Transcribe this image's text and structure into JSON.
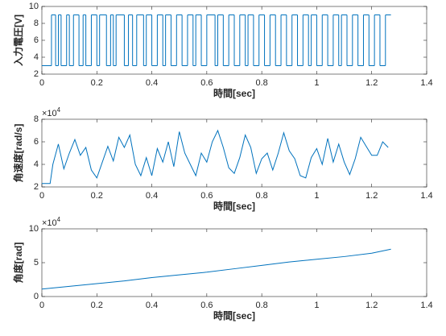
{
  "chart_data": [
    {
      "type": "step",
      "xlabel": "時間[sec]",
      "ylabel": "入力電圧[V]",
      "color": "#0072BD",
      "x": [
        0,
        0.035,
        0.05,
        0.06,
        0.07,
        0.09,
        0.1,
        0.115,
        0.135,
        0.15,
        0.16,
        0.18,
        0.2,
        0.21,
        0.235,
        0.25,
        0.26,
        0.27,
        0.3,
        0.315,
        0.33,
        0.345,
        0.37,
        0.38,
        0.4,
        0.42,
        0.44,
        0.45,
        0.47,
        0.49,
        0.51,
        0.53,
        0.55,
        0.56,
        0.58,
        0.6,
        0.63,
        0.64,
        0.66,
        0.68,
        0.7,
        0.72,
        0.74,
        0.75,
        0.77,
        0.79,
        0.81,
        0.83,
        0.85,
        0.87,
        0.89,
        0.91,
        0.93,
        0.95,
        0.97,
        0.98,
        1.0,
        1.02,
        1.04,
        1.06,
        1.08,
        1.09,
        1.11,
        1.13,
        1.15,
        1.17,
        1.19,
        1.21,
        1.23,
        1.25,
        1.27
      ],
      "values": [
        3,
        9,
        3,
        9,
        3,
        9,
        3,
        9,
        3,
        9,
        3,
        9,
        3,
        9,
        3,
        9,
        3,
        9,
        3,
        9,
        3,
        9,
        3,
        9,
        3,
        9,
        3,
        9,
        3,
        9,
        3,
        9,
        3,
        9,
        3,
        9,
        3,
        9,
        3,
        9,
        3,
        9,
        3,
        9,
        3,
        9,
        3,
        9,
        3,
        9,
        3,
        9,
        3,
        9,
        3,
        9,
        3,
        9,
        3,
        9,
        3,
        9,
        3,
        9,
        3,
        9,
        3,
        9,
        3,
        9,
        9
      ],
      "xlim": [
        0,
        1.4
      ],
      "xticks": [
        0,
        0.2,
        0.4,
        0.6,
        0.8,
        1,
        1.2,
        1.4
      ],
      "ylim": [
        2,
        10
      ],
      "yticks": [
        2,
        4,
        6,
        8,
        10
      ]
    },
    {
      "type": "line",
      "xlabel": "時間[sec]",
      "ylabel": "角速度[rad/s]",
      "color": "#0072BD",
      "y_exponent_base": "×10",
      "y_exponent": "4",
      "x": [
        0,
        0.03,
        0.04,
        0.06,
        0.08,
        0.1,
        0.12,
        0.14,
        0.16,
        0.18,
        0.2,
        0.22,
        0.24,
        0.26,
        0.28,
        0.3,
        0.32,
        0.34,
        0.36,
        0.38,
        0.4,
        0.42,
        0.44,
        0.46,
        0.48,
        0.5,
        0.52,
        0.54,
        0.56,
        0.58,
        0.6,
        0.62,
        0.64,
        0.66,
        0.68,
        0.7,
        0.72,
        0.74,
        0.76,
        0.78,
        0.8,
        0.82,
        0.84,
        0.86,
        0.88,
        0.9,
        0.92,
        0.94,
        0.96,
        0.98,
        1.0,
        1.02,
        1.04,
        1.06,
        1.08,
        1.1,
        1.12,
        1.14,
        1.16,
        1.18,
        1.2,
        1.22,
        1.24,
        1.26
      ],
      "values": [
        2.3,
        2.3,
        4.0,
        5.8,
        3.6,
        5.0,
        6.2,
        4.8,
        5.5,
        3.5,
        2.8,
        4.2,
        5.6,
        4.3,
        6.4,
        5.5,
        6.6,
        4.0,
        3.0,
        4.6,
        3.0,
        5.4,
        4.2,
        6.0,
        3.8,
        6.9,
        5.0,
        4.0,
        3.0,
        5.0,
        4.2,
        6.0,
        7.0,
        5.5,
        3.7,
        3.2,
        4.6,
        6.6,
        5.5,
        3.2,
        4.5,
        5.0,
        3.5,
        5.0,
        6.8,
        5.2,
        4.5,
        3.0,
        2.8,
        4.6,
        5.4,
        4.0,
        6.3,
        4.2,
        5.8,
        4.2,
        3.1,
        4.5,
        6.4,
        5.6,
        4.8,
        4.8,
        6.0,
        5.5
      ],
      "xlim": [
        0,
        1.4
      ],
      "xticks": [
        0,
        0.2,
        0.4,
        0.6,
        0.8,
        1,
        1.2,
        1.4
      ],
      "ylim": [
        2,
        8
      ],
      "yticks": [
        2,
        4,
        6,
        8
      ]
    },
    {
      "type": "line",
      "xlabel": "時間[sec]",
      "ylabel": "角度[rad]",
      "color": "#0072BD",
      "y_exponent_base": "×10",
      "y_exponent": "4",
      "x": [
        0,
        0.1,
        0.2,
        0.3,
        0.4,
        0.5,
        0.6,
        0.7,
        0.8,
        0.9,
        1.0,
        1.1,
        1.2,
        1.27
      ],
      "values": [
        1.1,
        1.5,
        1.9,
        2.3,
        2.8,
        3.2,
        3.6,
        4.1,
        4.6,
        5.1,
        5.5,
        5.9,
        6.4,
        7.0
      ],
      "xlim": [
        0,
        1.4
      ],
      "xticks": [
        0,
        0.2,
        0.4,
        0.6,
        0.8,
        1,
        1.2,
        1.4
      ],
      "ylim": [
        0,
        10
      ],
      "yticks": [
        0,
        5,
        10
      ]
    }
  ]
}
